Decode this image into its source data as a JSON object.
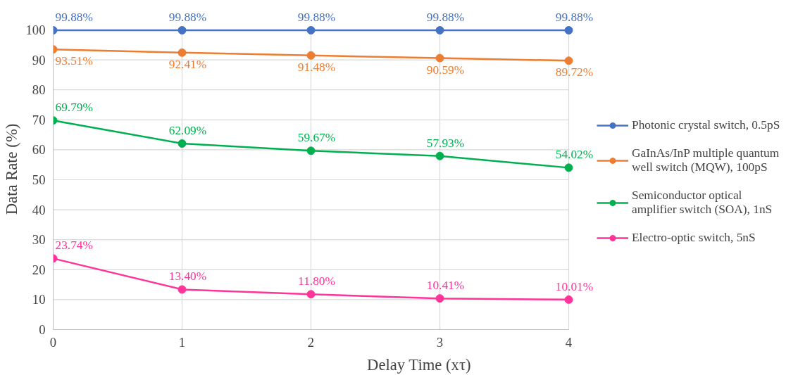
{
  "chart_data": {
    "type": "line",
    "xlabel": "Delay Time (xτ)",
    "ylabel": "Data Rate (%)",
    "x": [
      0,
      1,
      2,
      3,
      4
    ],
    "xlim": [
      0,
      4
    ],
    "xticks": [
      0,
      1,
      2,
      3,
      4
    ],
    "ylim": [
      0,
      100
    ],
    "yticks": [
      0,
      10,
      20,
      30,
      40,
      50,
      60,
      70,
      80,
      90,
      100
    ],
    "grid": true,
    "legend": "right",
    "marker": "circle",
    "line_style": "solid",
    "series": [
      {
        "name": "Photonic crystal switch, 0.5pS",
        "color": "#4472c4",
        "values": [
          99.88,
          99.88,
          99.88,
          99.88,
          99.88
        ],
        "value_labels": [
          "99.88%",
          "99.88%",
          "99.88%",
          "99.88%",
          "99.88%"
        ]
      },
      {
        "name": "GaInAs/InP multiple quantum well switch (MQW), 100pS",
        "color": "#ed7d31",
        "values": [
          93.51,
          92.41,
          91.48,
          90.59,
          89.72
        ],
        "value_labels": [
          "93.51%",
          "92.41%",
          "91.48%",
          "90.59%",
          "89.72%"
        ]
      },
      {
        "name": "Semiconductor optical amplifier switch (SOA), 1nS",
        "color": "#00b050",
        "values": [
          69.79,
          62.09,
          59.67,
          57.93,
          54.02
        ],
        "value_labels": [
          "69.79%",
          "62.09%",
          "59.67%",
          "57.93%",
          "54.02%"
        ]
      },
      {
        "name": "Electro-optic switch, 5nS",
        "color": "#ff3399",
        "values": [
          23.74,
          13.4,
          11.8,
          10.41,
          10.01
        ],
        "value_labels": [
          "23.74%",
          "13.40%",
          "11.80%",
          "10.41%",
          "10.01%"
        ]
      }
    ]
  }
}
